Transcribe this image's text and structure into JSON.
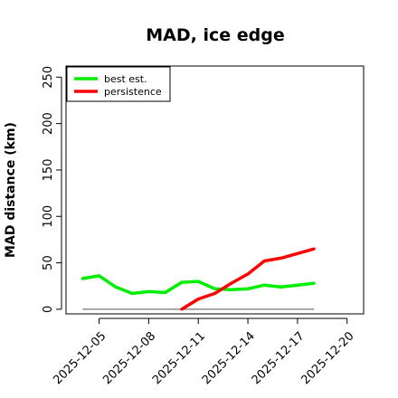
{
  "chart_data": {
    "type": "line",
    "title": "MAD, ice edge",
    "xlabel": "",
    "ylabel": "MAD distance (km)",
    "x_tick_labels": [
      "2025-12-05",
      "2025-12-08",
      "2025-12-11",
      "2025-12-14",
      "2025-12-17",
      "2025-12-20"
    ],
    "x_ticks": [
      "2025-12-05",
      "2025-12-08",
      "2025-12-11",
      "2025-12-14",
      "2025-12-17",
      "2025-12-20"
    ],
    "xlim": [
      "2025-12-03",
      "2025-12-21"
    ],
    "ylim": [
      -5,
      262
    ],
    "y_ticks": [
      0,
      50,
      100,
      150,
      200,
      250
    ],
    "y_tick_labels": [
      "0",
      "50",
      "100",
      "150",
      "200",
      "250"
    ],
    "legend": {
      "placement": "top-left",
      "entries": [
        "best est.",
        "persistence"
      ]
    },
    "grid": false,
    "reference_line": {
      "y": 0,
      "x_range": [
        "2025-12-04",
        "2025-12-18"
      ],
      "color": "#777777"
    },
    "series": [
      {
        "name": "best est.",
        "color": "#00ee00",
        "x": [
          "2025-12-04",
          "2025-12-05",
          "2025-12-06",
          "2025-12-07",
          "2025-12-08",
          "2025-12-09",
          "2025-12-10",
          "2025-12-11",
          "2025-12-12",
          "2025-12-13",
          "2025-12-14",
          "2025-12-15",
          "2025-12-16",
          "2025-12-17",
          "2025-12-18"
        ],
        "values": [
          33,
          36,
          24,
          17,
          19,
          18,
          29,
          30,
          22,
          21,
          22,
          26,
          24,
          26,
          28
        ]
      },
      {
        "name": "persistence",
        "color": "#ff0000",
        "x": [
          "2025-12-10",
          "2025-12-11",
          "2025-12-12",
          "2025-12-13",
          "2025-12-14",
          "2025-12-15",
          "2025-12-16",
          "2025-12-17",
          "2025-12-18"
        ],
        "values": [
          0,
          11,
          17,
          28,
          38,
          52,
          55,
          60,
          65
        ]
      }
    ]
  }
}
